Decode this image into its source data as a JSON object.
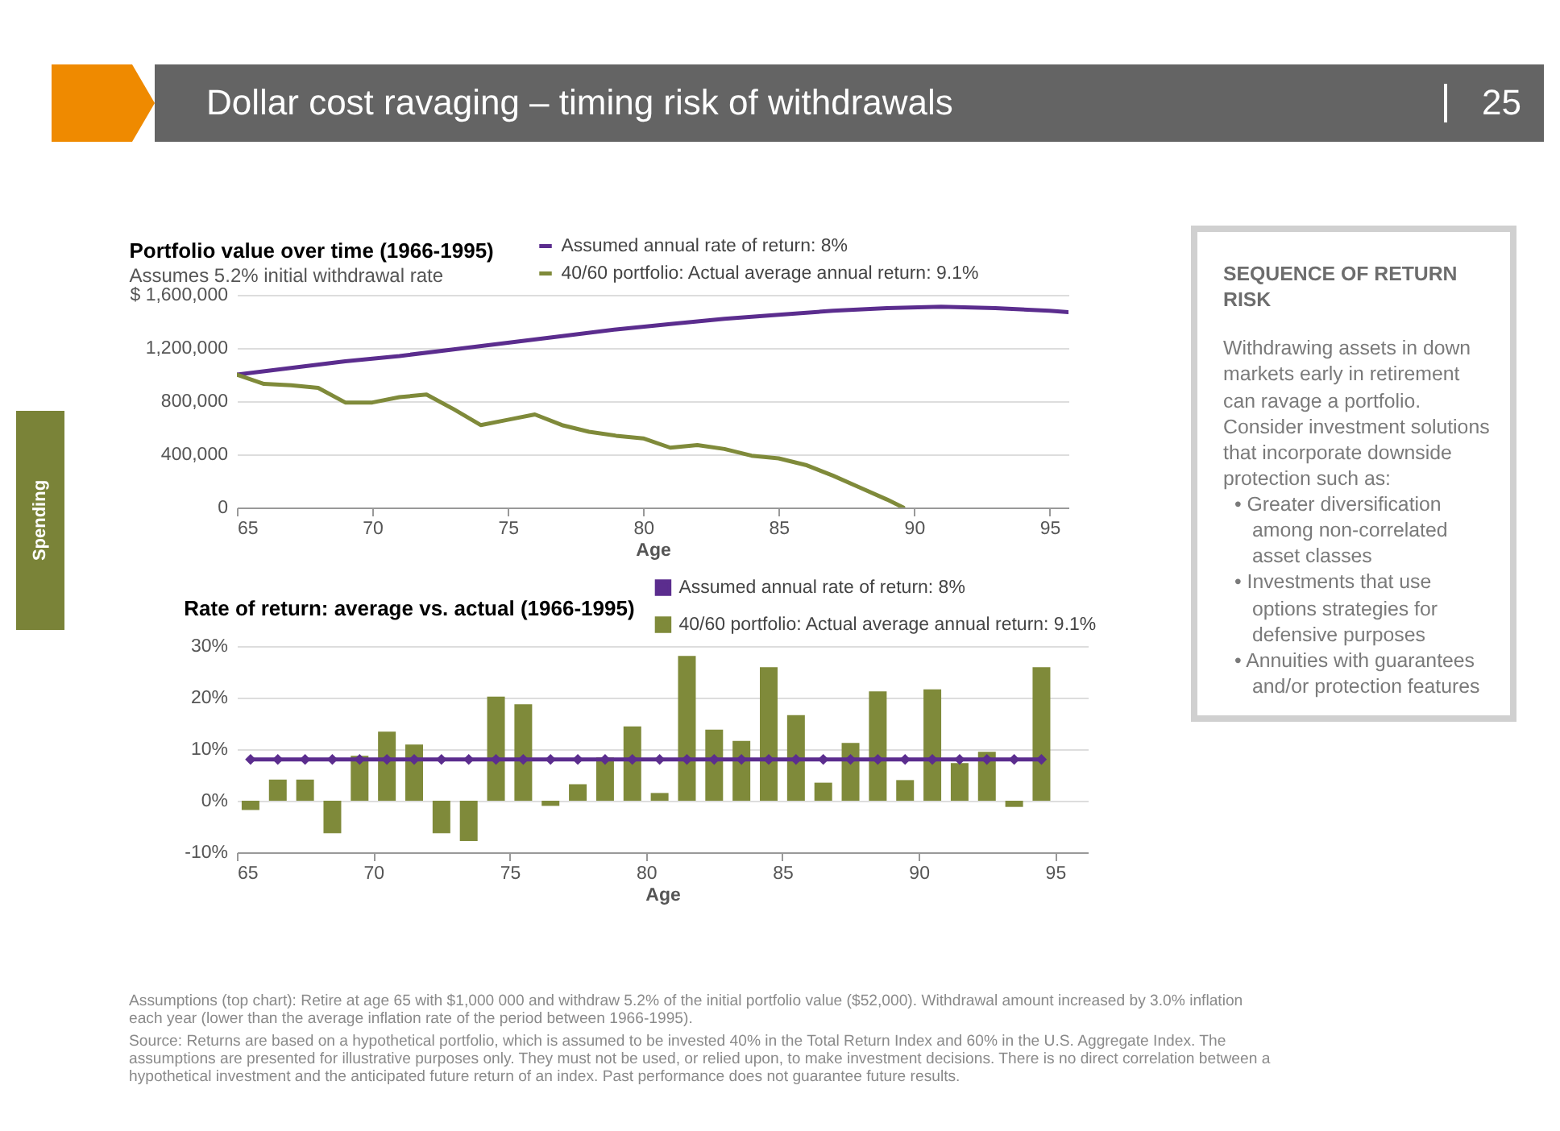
{
  "chart_data": [
    {
      "type": "other",
      "title": "Dollar cost ravaging – timing risk of withdrawals",
      "annotations": [
        "25",
        "Spending"
      ]
    },
    {
      "type": "line",
      "title": "Portfolio value over time (1966-1995)",
      "subtitle": "Assumes 5.2% initial withdrawal rate",
      "xlabel": "Age",
      "xlim": [
        65,
        95.7
      ],
      "xticks": [
        65,
        70,
        75,
        80,
        85,
        90,
        95
      ],
      "ylim": [
        0,
        1600000
      ],
      "yticks": [
        {
          "value": 0,
          "label": "0"
        },
        {
          "value": 400000,
          "label": "400,000"
        },
        {
          "value": 800000,
          "label": "800,000"
        },
        {
          "value": 1200000,
          "label": "1,200,000"
        },
        {
          "value": 1600000,
          "label": "$ 1,600,000"
        }
      ],
      "grid": "y",
      "legend": "top right",
      "series": [
        {
          "name": "Assumed annual rate of return: 8%",
          "color": "#5b2d8e",
          "x": [
            65,
            67,
            69,
            71,
            73,
            75,
            77,
            79,
            81,
            83,
            85,
            87,
            89,
            91,
            93,
            95,
            95.7
          ],
          "values": [
            1000000,
            1050000,
            1100000,
            1140000,
            1190000,
            1240000,
            1290000,
            1340000,
            1380000,
            1420000,
            1450000,
            1480000,
            1500000,
            1510000,
            1500000,
            1480000,
            1470000
          ]
        },
        {
          "name": "40/60 portfolio: Actual average annual return: 9.1%",
          "color": "#7f8a3a",
          "x": [
            65,
            66,
            67,
            68,
            69,
            70,
            71,
            72,
            73,
            74,
            75,
            76,
            77,
            78,
            79,
            80,
            81,
            82,
            83,
            84,
            85,
            86,
            87,
            88,
            89,
            89.6
          ],
          "values": [
            1000000,
            930000,
            920000,
            900000,
            790000,
            790000,
            830000,
            850000,
            740000,
            620000,
            660000,
            700000,
            620000,
            570000,
            540000,
            520000,
            450000,
            470000,
            440000,
            390000,
            370000,
            320000,
            240000,
            150000,
            60000,
            0
          ]
        }
      ]
    },
    {
      "type": "bar",
      "title": "Rate of return: average vs. actual (1966-1995)",
      "xlabel": "Age",
      "xlim": [
        65,
        96.2
      ],
      "xticks": [
        65,
        70,
        75,
        80,
        85,
        90,
        95
      ],
      "ylim": [
        -10,
        30
      ],
      "yticks": [
        {
          "value": -10,
          "label": "-10%"
        },
        {
          "value": 0,
          "label": "0%"
        },
        {
          "value": 10,
          "label": "10%"
        },
        {
          "value": 20,
          "label": "20%"
        },
        {
          "value": 30,
          "label": "30%"
        }
      ],
      "grid": "y",
      "legend": "top right",
      "series": [
        {
          "name": "Assumed annual rate of return: 8%",
          "type": "line",
          "marker": "diamond",
          "color": "#5b2d8e",
          "x": [
            65.5,
            66.5,
            67.5,
            68.5,
            69.5,
            70.5,
            71.5,
            72.5,
            73.5,
            74.5,
            75.5,
            76.5,
            77.5,
            78.5,
            79.5,
            80.5,
            81.5,
            82.5,
            83.5,
            84.5,
            85.5,
            86.5,
            87.5,
            88.5,
            89.5,
            90.5,
            91.5,
            92.5,
            93.5,
            94.5
          ],
          "values": [
            8,
            8,
            8,
            8,
            8,
            8,
            8,
            8,
            8,
            8,
            8,
            8,
            8,
            8,
            8,
            8,
            8,
            8,
            8,
            8,
            8,
            8,
            8,
            8,
            8,
            8,
            8,
            8,
            8,
            8
          ]
        },
        {
          "name": "40/60 portfolio: Actual average annual return: 9.1%",
          "type": "bar",
          "color": "#7f8a3a",
          "x": [
            65.5,
            66.5,
            67.5,
            68.5,
            69.5,
            70.5,
            71.5,
            72.5,
            73.5,
            74.5,
            75.5,
            76.5,
            77.5,
            78.5,
            79.5,
            80.5,
            81.5,
            82.5,
            83.5,
            84.5,
            85.5,
            86.5,
            87.5,
            88.5,
            89.5,
            90.5,
            91.5,
            92.5,
            93.5,
            94.5
          ],
          "values": [
            -1.8,
            4.1,
            4.1,
            -6.3,
            8.7,
            13.4,
            10.9,
            -6.3,
            -7.8,
            20.2,
            18.7,
            -1,
            3.2,
            8.4,
            14.4,
            1.5,
            28.1,
            13.8,
            11.6,
            25.9,
            16.6,
            3.5,
            11.2,
            21.2,
            4,
            21.6,
            7.3,
            9.5,
            -1.2,
            25.9
          ]
        }
      ]
    },
    {
      "type": "other",
      "title": "SEQUENCE OF RETURN RISK",
      "annotations": [
        "Withdrawing assets in down markets early in retirement can ravage a portfolio. Consider investment solutions that incorporate downside protection such as:",
        "• Greater diversification among non-correlated asset classes",
        "• Investments that use options strategies for defensive purposes",
        "• Annuities with guarantees and/or protection features"
      ]
    },
    {
      "type": "other",
      "annotations": [
        "Assumptions (top chart): Retire at age 65 with $1,000 000 and withdraw 5.2% of the initial portfolio value ($52,000). Withdrawal amount increased by 3.0% inflation each year (lower than the average inflation rate of the period between 1966-1995).",
        "Source: Returns are based on a hypothetical portfolio, which is assumed to be invested 40% in the Total Return Index and 60% in the U.S. Aggregate Index. The assumptions are presented for illustrative purposes only. They must not be used, or relied upon, to make investment decisions. There is no direct correlation between a hypothetical investment and the anticipated future return of an index. Past performance does not guarantee future results."
      ]
    }
  ]
}
